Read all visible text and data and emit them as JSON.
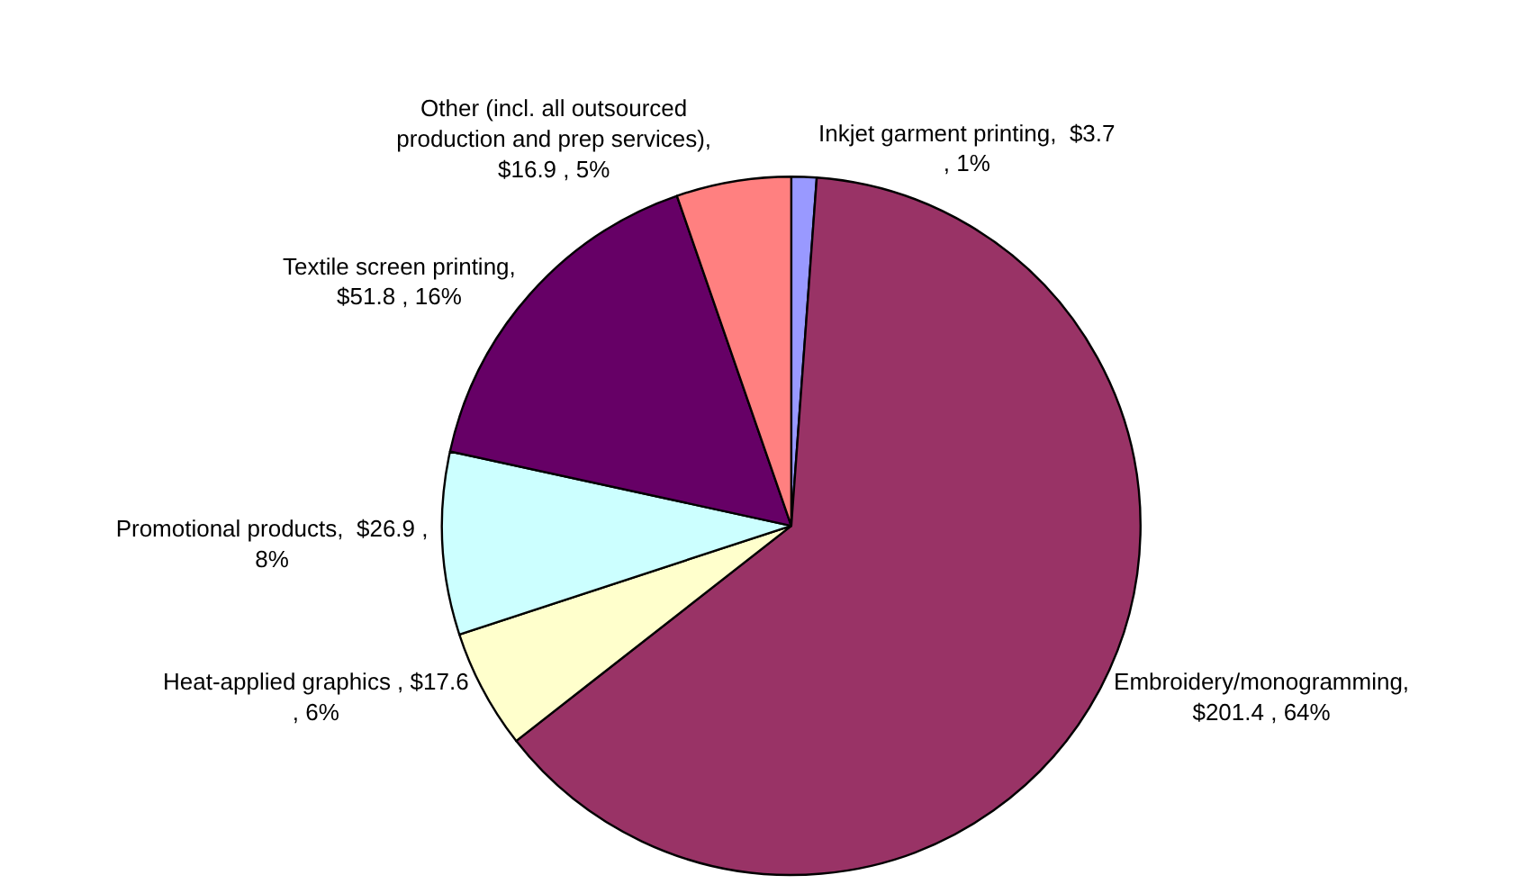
{
  "chart_data": {
    "type": "pie",
    "categories": [
      "Inkjet garment printing",
      "Embroidery/monogramming",
      "Heat-applied graphics",
      "Promotional products",
      "Textile screen printing",
      "Other (incl. all outsourced production and prep services)"
    ],
    "values": [
      3.7,
      201.4,
      17.6,
      26.9,
      51.8,
      16.9
    ],
    "colors": [
      "#9999ff",
      "#993366",
      "#ffffcc",
      "#ccffff",
      "#660066",
      "#ff8080"
    ],
    "value_labels": [
      ",  $3.7 , 1%",
      ",  $201.4 , 64%",
      " , $17.6 , 6%",
      ",  $26.9 , 8%",
      ",  $51.8 , 16%",
      ", $16.9 , 5%"
    ]
  }
}
